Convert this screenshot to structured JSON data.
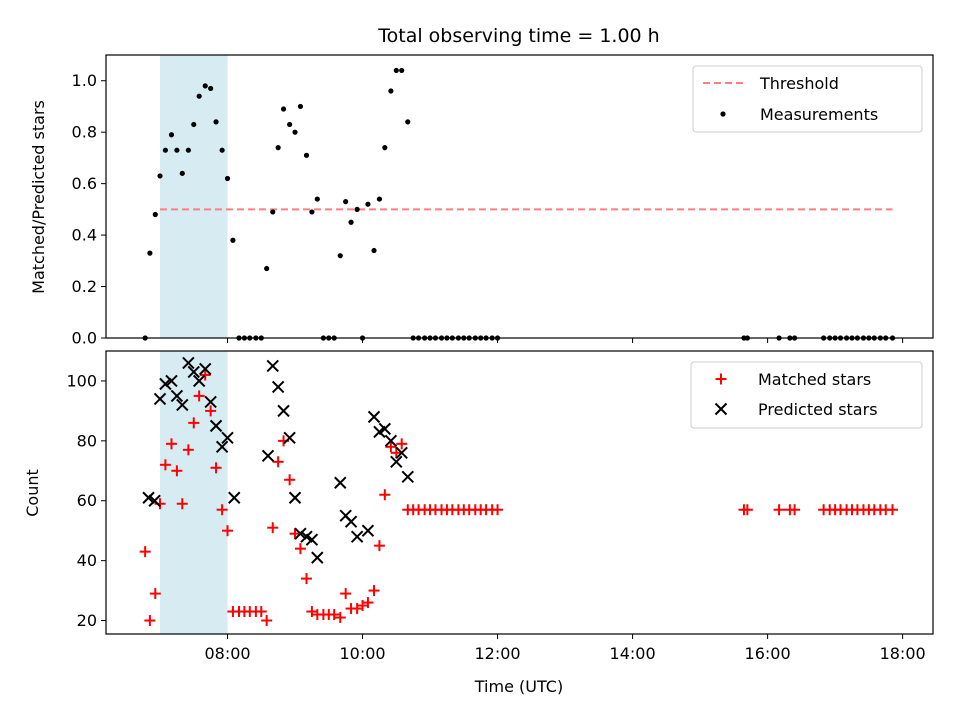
{
  "colors": {
    "threshold": "#ff7f7f",
    "measurement": "#000000",
    "matched": "#ff0000",
    "predicted": "#000000",
    "span": "#add8e6"
  },
  "chart_data": [
    {
      "type": "scatter",
      "title": "Total observing time = 1.00 h",
      "xlabel": "",
      "ylabel": "Matched/Predicted stars",
      "xlim": [
        6.2,
        18.45
      ],
      "ylim": [
        0,
        1.1
      ],
      "yticks": [
        0.0,
        0.2,
        0.4,
        0.6,
        0.8,
        1.0
      ],
      "ytick_labels": [
        "0.0",
        "0.2",
        "0.4",
        "0.6",
        "0.8",
        "1.0"
      ],
      "highlight_span": [
        7.0,
        8.0
      ],
      "legend": {
        "position": "upper right",
        "entries": [
          "Threshold",
          "Measurements"
        ]
      },
      "threshold": {
        "name": "Threshold",
        "y": 0.5,
        "x": [
          7.0,
          17.85
        ]
      },
      "series": [
        {
          "name": "Measurements",
          "x": [
            6.78,
            6.85,
            6.93,
            7.0,
            7.08,
            7.17,
            7.25,
            7.33,
            7.42,
            7.5,
            7.58,
            7.67,
            7.75,
            7.83,
            7.92,
            8.0,
            8.08,
            8.17,
            8.25,
            8.33,
            8.42,
            8.5,
            8.58,
            8.67,
            8.75,
            8.83,
            8.92,
            9.0,
            9.08,
            9.17,
            9.25,
            9.33,
            9.42,
            9.5,
            9.58,
            9.67,
            9.75,
            9.83,
            9.92,
            10.0,
            10.08,
            10.17,
            10.25,
            10.33,
            10.42,
            10.5,
            10.58,
            10.67,
            10.75,
            10.83,
            10.92,
            11.0,
            11.08,
            11.17,
            11.25,
            11.33,
            11.42,
            11.5,
            11.58,
            11.67,
            11.75,
            11.83,
            11.92,
            12.0,
            15.65,
            15.7,
            16.17,
            16.33,
            16.4,
            16.83,
            16.92,
            17.0,
            17.08,
            17.17,
            17.25,
            17.33,
            17.42,
            17.5,
            17.58,
            17.67,
            17.75,
            17.85
          ],
          "y": [
            0.0,
            0.33,
            0.48,
            0.63,
            0.73,
            0.79,
            0.73,
            0.64,
            0.73,
            0.83,
            0.94,
            0.98,
            0.97,
            0.84,
            0.73,
            0.62,
            0.38,
            0.0,
            0.0,
            0.0,
            0.0,
            0.0,
            0.27,
            0.49,
            0.74,
            0.89,
            0.83,
            0.8,
            0.9,
            0.71,
            0.49,
            0.54,
            0.0,
            0.0,
            0.0,
            0.32,
            0.53,
            0.45,
            0.5,
            0.0,
            0.52,
            0.34,
            0.54,
            0.74,
            0.96,
            1.04,
            1.04,
            0.84,
            0.0,
            0.0,
            0.0,
            0.0,
            0.0,
            0.0,
            0.0,
            0.0,
            0.0,
            0.0,
            0.0,
            0.0,
            0.0,
            0.0,
            0.0,
            0.0,
            0.0,
            0.0,
            0.0,
            0.0,
            0.0,
            0.0,
            0.0,
            0.0,
            0.0,
            0.0,
            0.0,
            0.0,
            0.0,
            0.0,
            0.0,
            0.0,
            0.0,
            0.0
          ]
        }
      ]
    },
    {
      "type": "scatter",
      "title": "",
      "xlabel": "Time (UTC)",
      "ylabel": "Count",
      "xlim": [
        6.2,
        18.45
      ],
      "ylim": [
        15.5,
        110
      ],
      "yticks": [
        20,
        40,
        60,
        80,
        100
      ],
      "ytick_labels": [
        "20",
        "40",
        "60",
        "80",
        "100"
      ],
      "xticks": [
        8,
        10,
        12,
        14,
        16,
        18
      ],
      "xtick_labels": [
        "08:00",
        "10:00",
        "12:00",
        "14:00",
        "16:00",
        "18:00"
      ],
      "highlight_span": [
        7.0,
        8.0
      ],
      "legend": {
        "position": "upper right",
        "entries": [
          "Matched stars",
          "Predicted stars"
        ]
      },
      "series": [
        {
          "name": "Matched stars",
          "marker": "plus",
          "x": [
            6.78,
            6.85,
            6.93,
            7.0,
            7.08,
            7.17,
            7.25,
            7.33,
            7.42,
            7.5,
            7.58,
            7.67,
            7.75,
            7.83,
            7.92,
            8.0,
            8.08,
            8.17,
            8.25,
            8.33,
            8.42,
            8.5,
            8.58,
            8.67,
            8.75,
            8.83,
            8.92,
            9.0,
            9.08,
            9.17,
            9.25,
            9.33,
            9.42,
            9.5,
            9.58,
            9.67,
            9.75,
            9.83,
            9.92,
            10.0,
            10.08,
            10.17,
            10.25,
            10.33,
            10.42,
            10.5,
            10.58,
            10.67,
            10.75,
            10.83,
            10.92,
            11.0,
            11.08,
            11.17,
            11.25,
            11.33,
            11.42,
            11.5,
            11.58,
            11.67,
            11.75,
            11.83,
            11.92,
            12.0,
            15.65,
            15.7,
            16.17,
            16.33,
            16.4,
            16.83,
            16.92,
            17.0,
            17.08,
            17.17,
            17.25,
            17.33,
            17.42,
            17.5,
            17.58,
            17.67,
            17.75,
            17.85
          ],
          "y": [
            43,
            20,
            29,
            59,
            72,
            79,
            70,
            59,
            77,
            86,
            95,
            102,
            90,
            71,
            57,
            50,
            23,
            23,
            23,
            23,
            23,
            23,
            20,
            51,
            73,
            80,
            67,
            49,
            44,
            34,
            23,
            22,
            22,
            22,
            22,
            21,
            29,
            24,
            24,
            25,
            26,
            30,
            45,
            62,
            78,
            76,
            79,
            57,
            57,
            57,
            57,
            57,
            57,
            57,
            57,
            57,
            57,
            57,
            57,
            57,
            57,
            57,
            57,
            57,
            57,
            57,
            57,
            57,
            57,
            57,
            57,
            57,
            57,
            57,
            57,
            57,
            57,
            57,
            57,
            57,
            57,
            57
          ]
        },
        {
          "name": "Predicted stars",
          "marker": "x",
          "x": [
            6.83,
            6.92,
            7.0,
            7.08,
            7.17,
            7.25,
            7.33,
            7.42,
            7.5,
            7.58,
            7.67,
            7.75,
            7.83,
            7.92,
            8.0,
            8.1,
            8.6,
            8.67,
            8.75,
            8.83,
            8.92,
            9.0,
            9.08,
            9.17,
            9.25,
            9.33,
            9.67,
            9.75,
            9.83,
            9.92,
            10.08,
            10.17,
            10.25,
            10.33,
            10.42,
            10.5,
            10.58,
            10.67
          ],
          "y": [
            61,
            60,
            94,
            99,
            100,
            95,
            92,
            106,
            103,
            100,
            104,
            93,
            85,
            78,
            81,
            61,
            75,
            105,
            98,
            90,
            81,
            61,
            49,
            48,
            47,
            41,
            66,
            55,
            53,
            48,
            50,
            88,
            83,
            84,
            80,
            73,
            76,
            68
          ]
        }
      ]
    }
  ]
}
